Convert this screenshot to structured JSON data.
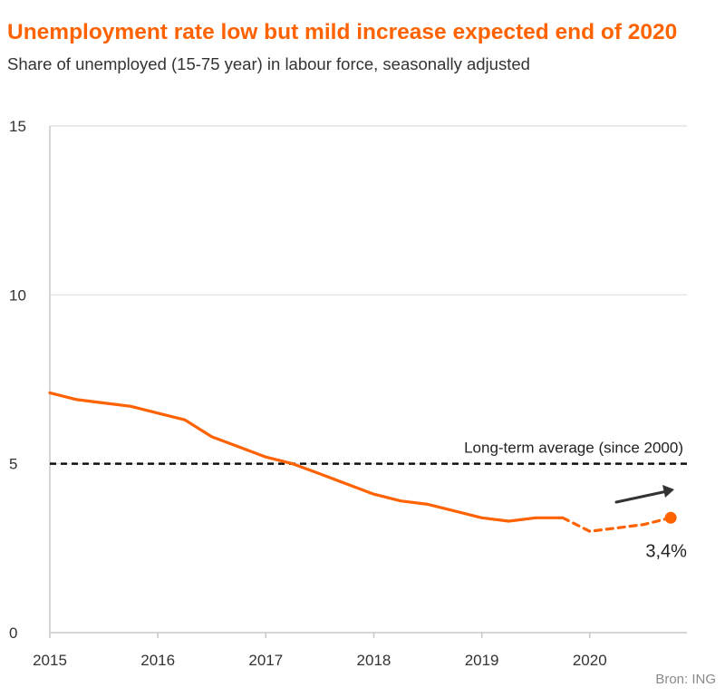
{
  "chart_data": {
    "type": "line",
    "title": "Unemployment rate low but mild increase expected end of 2020",
    "subtitle": "Share of unemployed (15-75 year) in labour force, seasonally adjusted",
    "source": "Bron: ING",
    "xlabel": "",
    "ylabel": "",
    "xlim": [
      2015,
      2020.9
    ],
    "ylim": [
      0,
      15
    ],
    "x_ticks": [
      "2015",
      "2016",
      "2017",
      "2018",
      "2019",
      "2020"
    ],
    "y_ticks": [
      "0",
      "5",
      "10",
      "15"
    ],
    "grid": "horizontal",
    "series": [
      {
        "role": "actual",
        "color": "#ff6200",
        "style": "solid",
        "x": [
          2015.0,
          2015.25,
          2015.5,
          2015.75,
          2016.0,
          2016.25,
          2016.5,
          2016.75,
          2017.0,
          2017.25,
          2017.5,
          2017.75,
          2018.0,
          2018.25,
          2018.5,
          2018.75,
          2019.0,
          2019.25,
          2019.5,
          2019.75
        ],
        "y": [
          7.1,
          6.9,
          6.8,
          6.7,
          6.5,
          6.3,
          5.8,
          5.5,
          5.2,
          5.0,
          4.7,
          4.4,
          4.1,
          3.9,
          3.8,
          3.6,
          3.4,
          3.3,
          3.4,
          3.4
        ]
      },
      {
        "role": "forecast",
        "color": "#ff6200",
        "style": "dashed",
        "x": [
          2019.75,
          2020.0,
          2020.25,
          2020.5,
          2020.75
        ],
        "y": [
          3.4,
          3.0,
          3.1,
          3.2,
          3.4
        ]
      }
    ],
    "reference_line": {
      "label": "Long-term average (since 2000)",
      "value": 5,
      "style": "dashed",
      "color": "#111111"
    },
    "end_point": {
      "x": 2020.75,
      "y": 3.4,
      "label": "3,4%"
    },
    "trend_arrow": {
      "direction": "up-right",
      "color": "#333333"
    }
  }
}
